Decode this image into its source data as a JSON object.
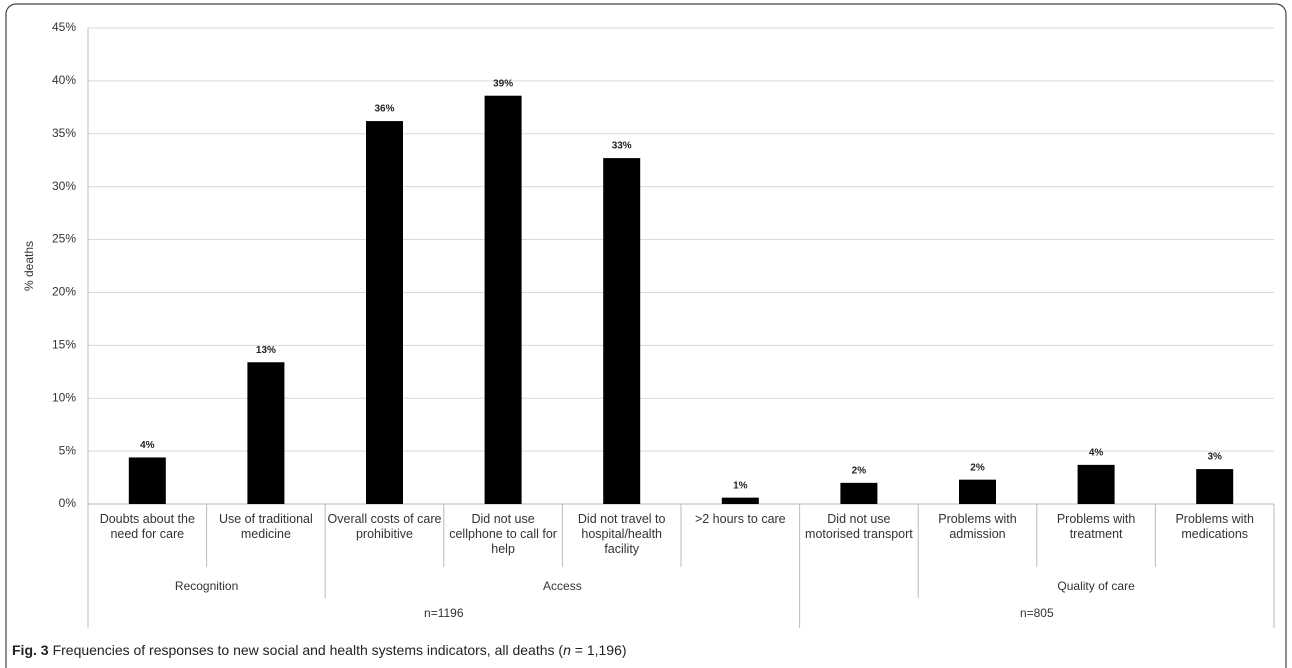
{
  "chart_data": {
    "type": "bar",
    "y_label": "% deaths",
    "color": "#000000",
    "grid": true,
    "ylim": [
      0,
      45
    ],
    "yticks": [
      {
        "value": 0,
        "label": "0%"
      },
      {
        "value": 5,
        "label": "5%"
      },
      {
        "value": 10,
        "label": "10%"
      },
      {
        "value": 15,
        "label": "15%"
      },
      {
        "value": 20,
        "label": "20%"
      },
      {
        "value": 25,
        "label": "25%"
      },
      {
        "value": 30,
        "label": "30%"
      },
      {
        "value": 35,
        "label": "35%"
      },
      {
        "value": 40,
        "label": "40%"
      },
      {
        "value": 45,
        "label": "45%"
      }
    ],
    "groups": [
      {
        "name": "n=1196",
        "groups": [
          {
            "name": "Recognition",
            "categories": [
              "Doubts about the need for care",
              "Use of traditional medicine"
            ]
          },
          {
            "name": "Access",
            "categories": [
              "Overall costs of care prohibitive",
              "Did not use cellphone to call for help",
              "Did not travel to hospital/health facility",
              ">2 hours to care"
            ]
          }
        ]
      },
      {
        "name": "n=805",
        "groups": [
          {
            "name": null,
            "categories": [
              "Did not use motorised transport"
            ]
          },
          {
            "name": "Quality of care",
            "categories": [
              "Problems with admission",
              "Problems with treatment",
              "Problems with medications"
            ]
          }
        ]
      }
    ],
    "values": [
      4.4,
      13.4,
      36.2,
      38.6,
      32.7,
      0.6,
      2.0,
      2.3,
      3.7,
      3.3
    ],
    "value_labels": [
      "4%",
      "13%",
      "36%",
      "39%",
      "33%",
      "1%",
      "2%",
      "2%",
      "4%",
      "3%"
    ],
    "caption": {
      "label": "Fig. 3",
      "text": "Frequencies of responses to new social and health systems indicators, all deaths (",
      "italic": "n",
      "text_end": " = 1,196)"
    }
  }
}
